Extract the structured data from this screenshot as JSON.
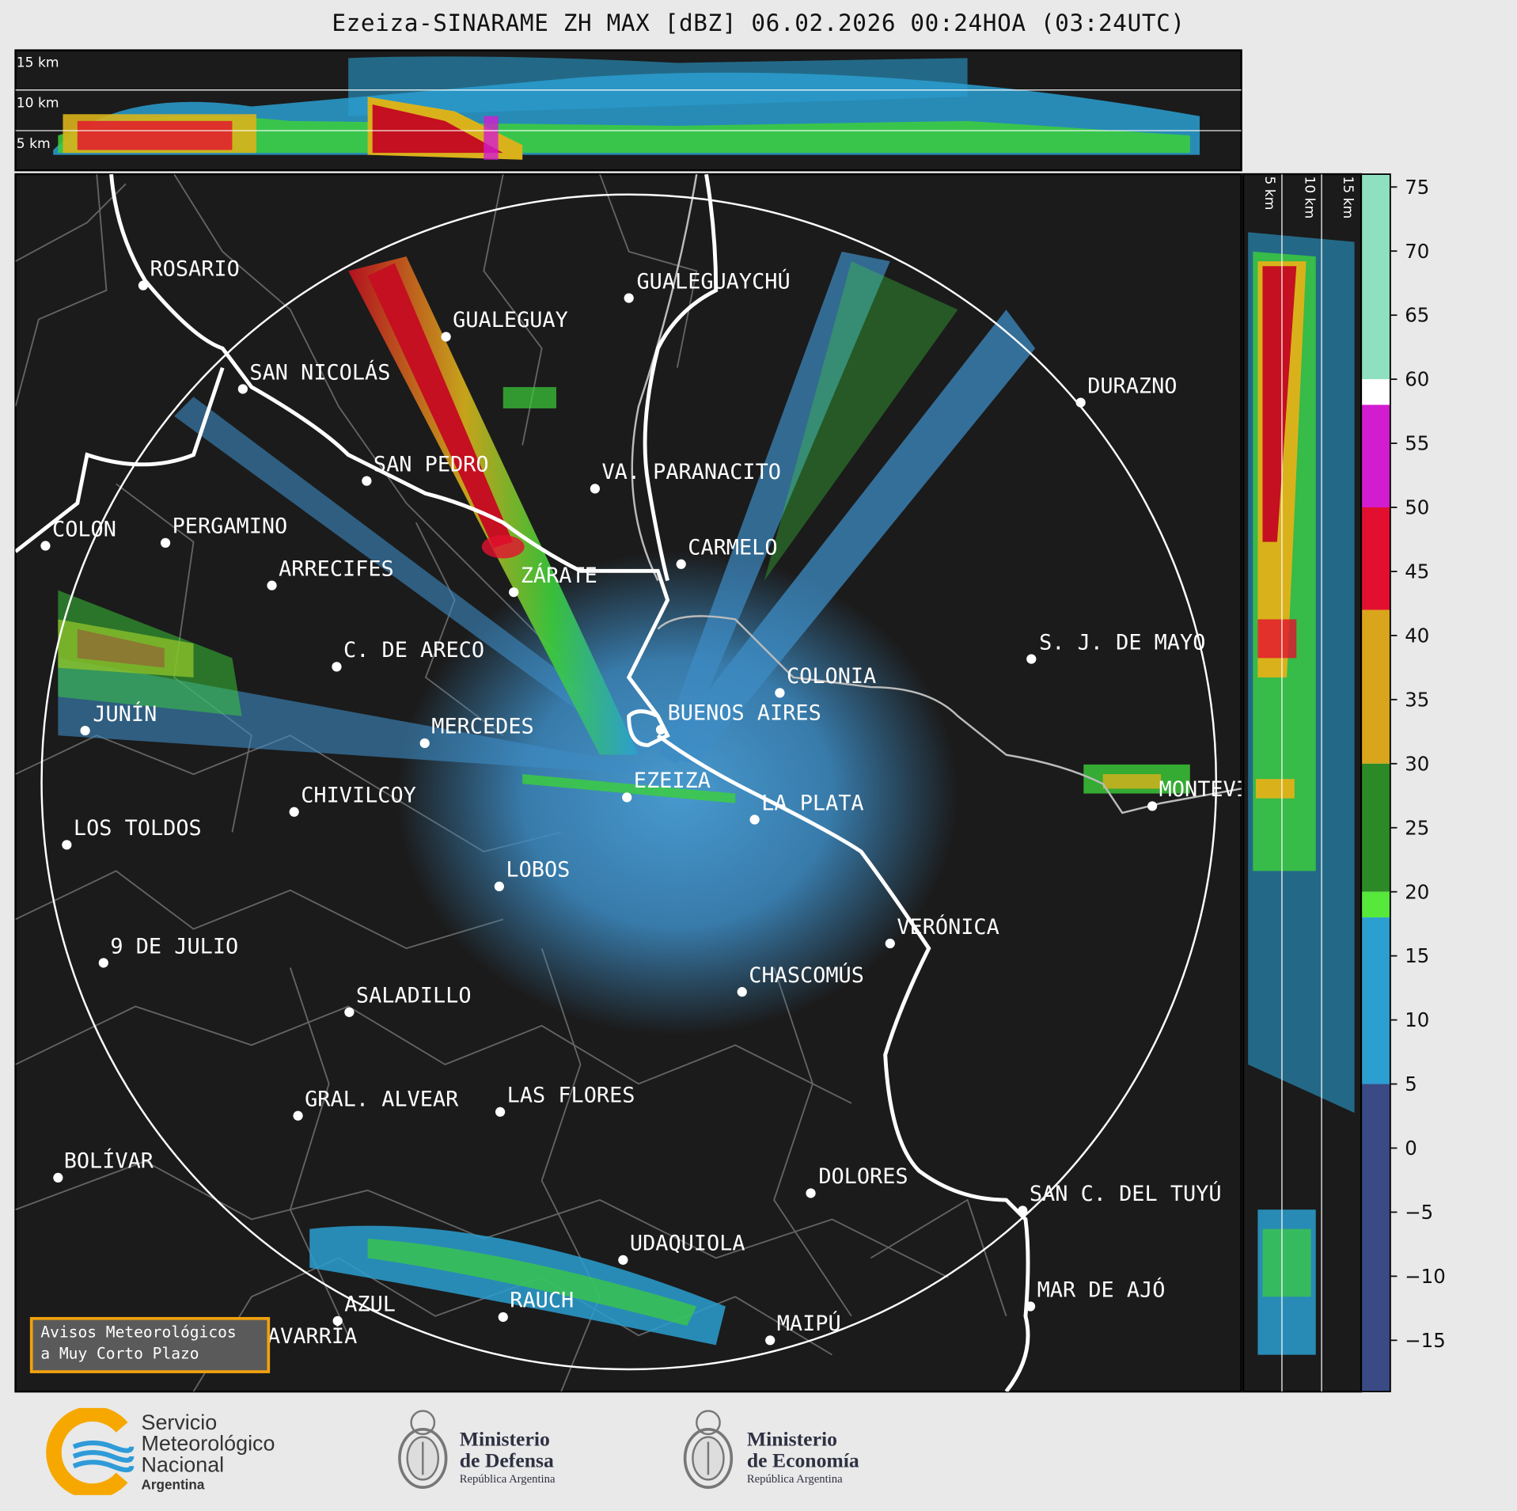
{
  "title": "Ezeiza-SINARAME ZH MAX [dBZ] 06.02.2026 00:24HOA (03:24UTC)",
  "top_panel": {
    "altitude_labels": [
      "15 km",
      "10 km",
      "5 km"
    ]
  },
  "side_panel": {
    "altitude_labels": [
      "5 km",
      "10 km",
      "15 km"
    ]
  },
  "colorbar": {
    "unit": "dBZ",
    "ticks": [
      "75",
      "70",
      "65",
      "60",
      "55",
      "50",
      "45",
      "40",
      "35",
      "30",
      "25",
      "20",
      "15",
      "10",
      "5",
      "0",
      "−5",
      "−10",
      "−15"
    ],
    "bands": [
      {
        "from": 60,
        "to": 76,
        "color": "#8fe0c0"
      },
      {
        "from": 58,
        "to": 60,
        "color": "#ffffff"
      },
      {
        "from": 50,
        "to": 58,
        "color": "#d21cd0"
      },
      {
        "from": 42,
        "to": 50,
        "color": "#e2102e"
      },
      {
        "from": 30,
        "to": 42,
        "color": "#d9a51b"
      },
      {
        "from": 20,
        "to": 30,
        "color": "#2c8a26"
      },
      {
        "from": 18,
        "to": 20,
        "color": "#56e83a"
      },
      {
        "from": 5,
        "to": 18,
        "color": "#2a9fd0"
      },
      {
        "from": -19,
        "to": 5,
        "color": "#3a4a84"
      }
    ]
  },
  "cities": [
    {
      "name": "ROSARIO"
    },
    {
      "name": "GUALEGUAYCHÚ"
    },
    {
      "name": "GUALEGUAY"
    },
    {
      "name": "SAN NICOLÁS"
    },
    {
      "name": "DURAZNO"
    },
    {
      "name": "SAN PEDRO"
    },
    {
      "name": "VA. PARANACITO"
    },
    {
      "name": "COLON"
    },
    {
      "name": "PERGAMINO"
    },
    {
      "name": "CARMELO"
    },
    {
      "name": "ARRECIFES"
    },
    {
      "name": "ZÁRATE"
    },
    {
      "name": "S. J. DE MAYO"
    },
    {
      "name": "C. DE ARECO"
    },
    {
      "name": "COLONIA"
    },
    {
      "name": "JUNÍN"
    },
    {
      "name": "BUENOS AIRES"
    },
    {
      "name": "MERCEDES"
    },
    {
      "name": "EZEIZA"
    },
    {
      "name": "MONTEVIDEO"
    },
    {
      "name": "CHIVILCOY"
    },
    {
      "name": "LA PLATA"
    },
    {
      "name": "LOS TOLDOS"
    },
    {
      "name": "LOBOS"
    },
    {
      "name": "VERÓNICA"
    },
    {
      "name": "9 DE JULIO"
    },
    {
      "name": "CHASCOMÚS"
    },
    {
      "name": "SALADILLO"
    },
    {
      "name": "GRAL. ALVEAR"
    },
    {
      "name": "LAS FLORES"
    },
    {
      "name": "BOLÍVAR"
    },
    {
      "name": "DOLORES"
    },
    {
      "name": "SAN C. DEL TUYÚ"
    },
    {
      "name": "UDAQUIOLA"
    },
    {
      "name": "MAR DE AJÓ"
    },
    {
      "name": "RAUCH"
    },
    {
      "name": "AZUL"
    },
    {
      "name": "MAIPÚ"
    },
    {
      "name": "OLAVARRÍA"
    }
  ],
  "aviso": {
    "line1": "Avisos Meteorológicos",
    "line2": "a Muy Corto Plazo"
  },
  "logos": {
    "smn": {
      "line1": "Servicio",
      "line2": "Meteorológico",
      "line3": "Nacional",
      "line4": "Argentina"
    },
    "defensa": {
      "line1": "Ministerio",
      "line2": "de Defensa",
      "line3": "República Argentina"
    },
    "economia": {
      "line1": "Ministerio",
      "line2": "de Economía",
      "line3": "República Argentina"
    }
  }
}
